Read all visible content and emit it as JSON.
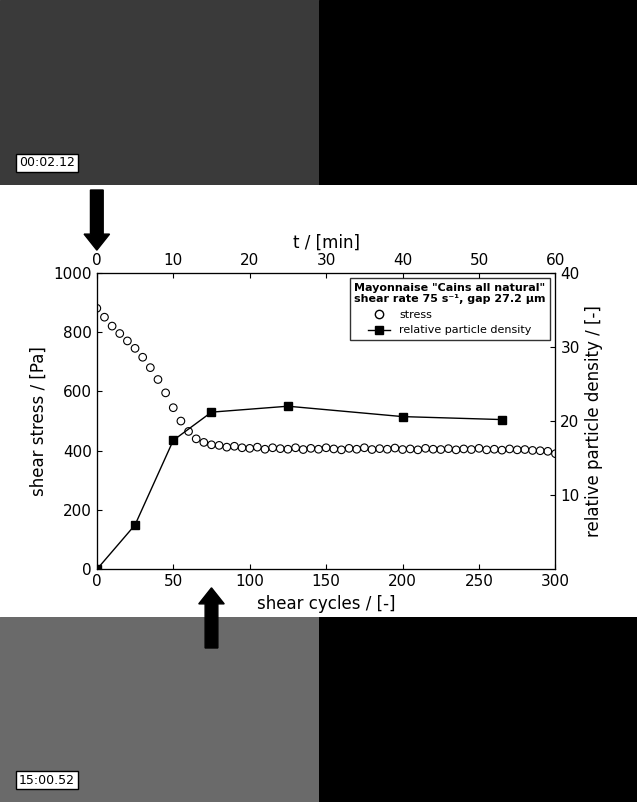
{
  "images": [
    {
      "timestamp": "00:02.12"
    },
    {
      "timestamp": "15:00.52"
    }
  ],
  "chart_data": {
    "type": "scatter",
    "xlabel": "shear cycles / [-]",
    "ylabel": "shear stress / [Pa]",
    "y2label": "relative particle density / [-]",
    "x2label": "t / [min]",
    "xlim": [
      0,
      300
    ],
    "xticks": [
      0,
      50,
      100,
      150,
      200,
      250,
      300
    ],
    "ylim": [
      0,
      1000
    ],
    "yticks": [
      0,
      200,
      400,
      600,
      800,
      1000
    ],
    "y2lim": [
      0,
      40
    ],
    "y2ticks": [
      10,
      20,
      30,
      40
    ],
    "x2lim": [
      0,
      60
    ],
    "x2ticks": [
      0,
      10,
      20,
      30,
      40,
      50,
      60
    ],
    "legend": "upper right",
    "legend_title": [
      "Mayonnaise \"Cains all natural\"",
      "shear rate 75 s⁻¹, gap 27.2 µm"
    ],
    "series": [
      {
        "name": "stress",
        "type": "scatter",
        "color": "#000000",
        "marker": "o",
        "x": [
          0,
          5,
          10,
          15,
          20,
          25,
          30,
          35,
          40,
          45,
          50,
          55,
          60,
          65,
          70,
          75,
          80,
          85,
          90,
          95,
          100,
          105,
          110,
          115,
          120,
          125,
          130,
          135,
          140,
          145,
          150,
          155,
          160,
          165,
          170,
          175,
          180,
          185,
          190,
          195,
          200,
          205,
          210,
          215,
          220,
          225,
          230,
          235,
          240,
          245,
          250,
          255,
          260,
          265,
          270,
          275,
          280,
          285,
          290,
          295,
          300
        ],
        "values": [
          880,
          850,
          820,
          795,
          770,
          745,
          715,
          680,
          640,
          595,
          545,
          500,
          465,
          440,
          428,
          420,
          418,
          412,
          415,
          410,
          408,
          412,
          405,
          410,
          407,
          405,
          410,
          404,
          408,
          405,
          410,
          406,
          403,
          408,
          405,
          410,
          404,
          407,
          405,
          409,
          404,
          406,
          403,
          408,
          405,
          404,
          407,
          403,
          406,
          404,
          408,
          403,
          405,
          402,
          406,
          403,
          404,
          401,
          400,
          398,
          390
        ]
      },
      {
        "name": "relative particle density",
        "type": "line",
        "color": "#000000",
        "marker": "s",
        "line_style": "solid",
        "axis": "y2",
        "x": [
          0,
          25,
          50,
          75,
          125,
          200,
          265
        ],
        "values": [
          0,
          6,
          17.4,
          21.2,
          22.0,
          20.6,
          20.2
        ]
      }
    ]
  }
}
